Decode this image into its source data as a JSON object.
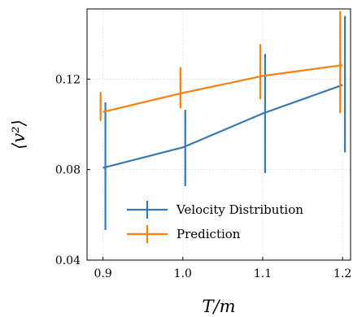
{
  "chart_data": {
    "type": "line",
    "title": "",
    "xlabel": "T/m",
    "ylabel": "⟨v²⟩",
    "xlim": [
      0.88,
      1.21
    ],
    "ylim": [
      0.04,
      0.151
    ],
    "xticks": [
      0.9,
      1.0,
      1.1,
      1.2
    ],
    "xtick_labels": [
      "0.9",
      "1.0",
      "1.1",
      "1.2"
    ],
    "yticks": [
      0.04,
      0.08,
      0.12
    ],
    "ytick_labels": [
      "0.04",
      "0.08",
      "0.12"
    ],
    "grid": true,
    "legend_position": "lower-right",
    "series": [
      {
        "name": "Velocity Distribution",
        "color": "#3a78b0",
        "error_x_offset": 0.003,
        "points": [
          {
            "x": 0.9,
            "y": 0.0808,
            "err_low": 0.0533,
            "err_high": 0.1097
          },
          {
            "x": 1.0,
            "y": 0.0898,
            "err_low": 0.0727,
            "err_high": 0.1064
          },
          {
            "x": 1.1,
            "y": 0.1048,
            "err_low": 0.0785,
            "err_high": 0.1311
          },
          {
            "x": 1.2,
            "y": 0.1174,
            "err_low": 0.0876,
            "err_high": 0.1479
          }
        ]
      },
      {
        "name": "Prediction",
        "color": "#f5800e",
        "error_x_offset": -0.003,
        "points": [
          {
            "x": 0.9,
            "y": 0.1055,
            "err_low": 0.1015,
            "err_high": 0.1142
          },
          {
            "x": 1.0,
            "y": 0.1139,
            "err_low": 0.1071,
            "err_high": 0.1253
          },
          {
            "x": 1.1,
            "y": 0.1214,
            "err_low": 0.1111,
            "err_high": 0.1354
          },
          {
            "x": 1.2,
            "y": 0.1262,
            "err_low": 0.105,
            "err_high": 0.15
          }
        ]
      }
    ]
  }
}
